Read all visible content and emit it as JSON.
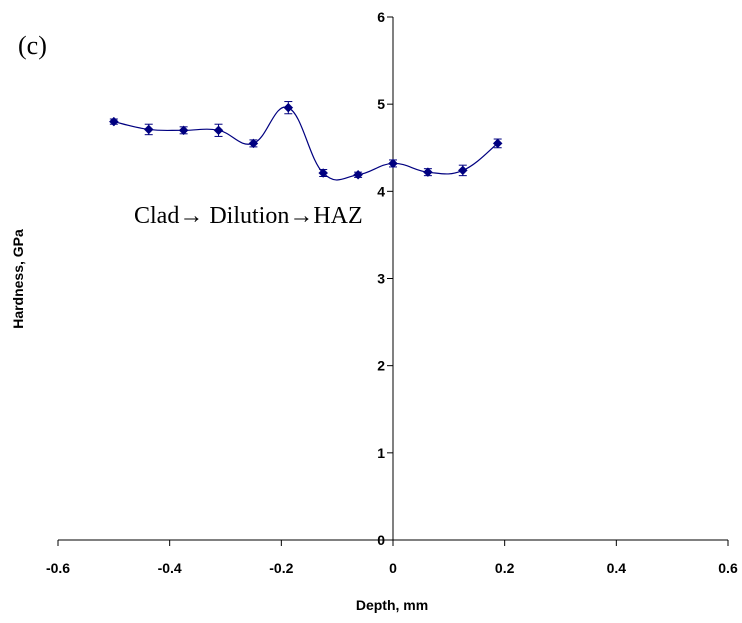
{
  "chart_data": {
    "type": "scatter",
    "panel_label": "(c)",
    "annotation": "Clad→ Dilution→HAZ",
    "xlabel": "Depth, mm",
    "ylabel": "Hardness, GPa",
    "xlim": [
      -0.6,
      0.6
    ],
    "ylim": [
      0,
      6
    ],
    "x_ticks": [
      -0.6,
      -0.4,
      -0.2,
      0,
      0.2,
      0.4,
      0.6
    ],
    "x_tick_labels": [
      "-0.6",
      "-0.4",
      "-0.2",
      "0",
      "0.2",
      "0.4",
      "0.6"
    ],
    "y_ticks": [
      0,
      1,
      2,
      3,
      4,
      5,
      6
    ],
    "y_tick_labels": [
      "0",
      "1",
      "2",
      "3",
      "4",
      "5",
      "6"
    ],
    "grid": false,
    "legend": false,
    "line_style": "smoothed",
    "marker": "diamond",
    "color": "#000080",
    "series": [
      {
        "x": [
          -0.5,
          -0.4375,
          -0.375,
          -0.3125,
          -0.25,
          -0.1875,
          -0.125,
          -0.0625,
          0,
          0.0625,
          0.125,
          0.1875
        ],
        "y": [
          4.8,
          4.71,
          4.7,
          4.7,
          4.55,
          4.96,
          4.21,
          4.19,
          4.32,
          4.22,
          4.24,
          4.55
        ],
        "error": [
          0.03,
          0.06,
          0.04,
          0.07,
          0.04,
          0.07,
          0.04,
          0.03,
          0.04,
          0.04,
          0.06,
          0.05
        ]
      }
    ]
  }
}
